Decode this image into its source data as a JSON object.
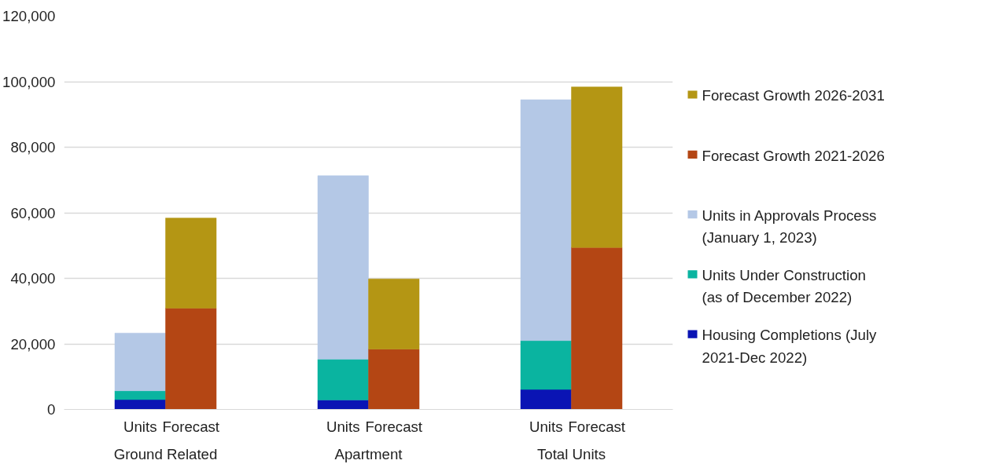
{
  "chart_data": {
    "type": "bar",
    "stacked": true,
    "categories": [
      null,
      "Units",
      "Forecast",
      null,
      null,
      "Units",
      "Forecast",
      null,
      null,
      "Units",
      "Forecast",
      null
    ],
    "annotations": [
      "Ground Related",
      "Apartment",
      "Total Units"
    ],
    "series": [
      {
        "name": "Housing Completions (July 2021-Dec 2022)",
        "color": "#0a14b4",
        "values": [
          null,
          3000,
          null,
          null,
          null,
          2900,
          null,
          null,
          null,
          6100,
          null,
          null
        ]
      },
      {
        "name": "Units Under Construction (as of December 2022)",
        "color": "#0ab4a0",
        "values": [
          null,
          2700,
          null,
          null,
          null,
          12400,
          null,
          null,
          null,
          14900,
          null,
          null
        ]
      },
      {
        "name": "Units in Approvals Process (January 1, 2023)",
        "color": "#b4c8e6",
        "values": [
          null,
          17600,
          null,
          null,
          null,
          56000,
          null,
          null,
          null,
          73500,
          null,
          null
        ]
      },
      {
        "name": "Forecast Growth 2021-2026",
        "color": "#b44614",
        "values": [
          null,
          null,
          30900,
          null,
          null,
          null,
          18400,
          null,
          null,
          null,
          49400,
          null
        ]
      },
      {
        "name": "Forecast Growth 2026-2031",
        "color": "#b49614",
        "values": [
          null,
          null,
          27500,
          null,
          null,
          null,
          21400,
          null,
          null,
          null,
          49000,
          null
        ]
      }
    ],
    "ylim": [
      0,
      120000
    ],
    "yticks": [
      {
        "value": 0,
        "label": "0"
      },
      {
        "value": 20000,
        "label": "20,000"
      },
      {
        "value": 40000,
        "label": "40,000"
      },
      {
        "value": 60000,
        "label": "60,000"
      },
      {
        "value": 80000,
        "label": "80,000"
      },
      {
        "value": 100000,
        "label": "100,000"
      },
      {
        "value": 120000,
        "label": "120,000"
      }
    ],
    "grid": "y",
    "legend": "right"
  }
}
